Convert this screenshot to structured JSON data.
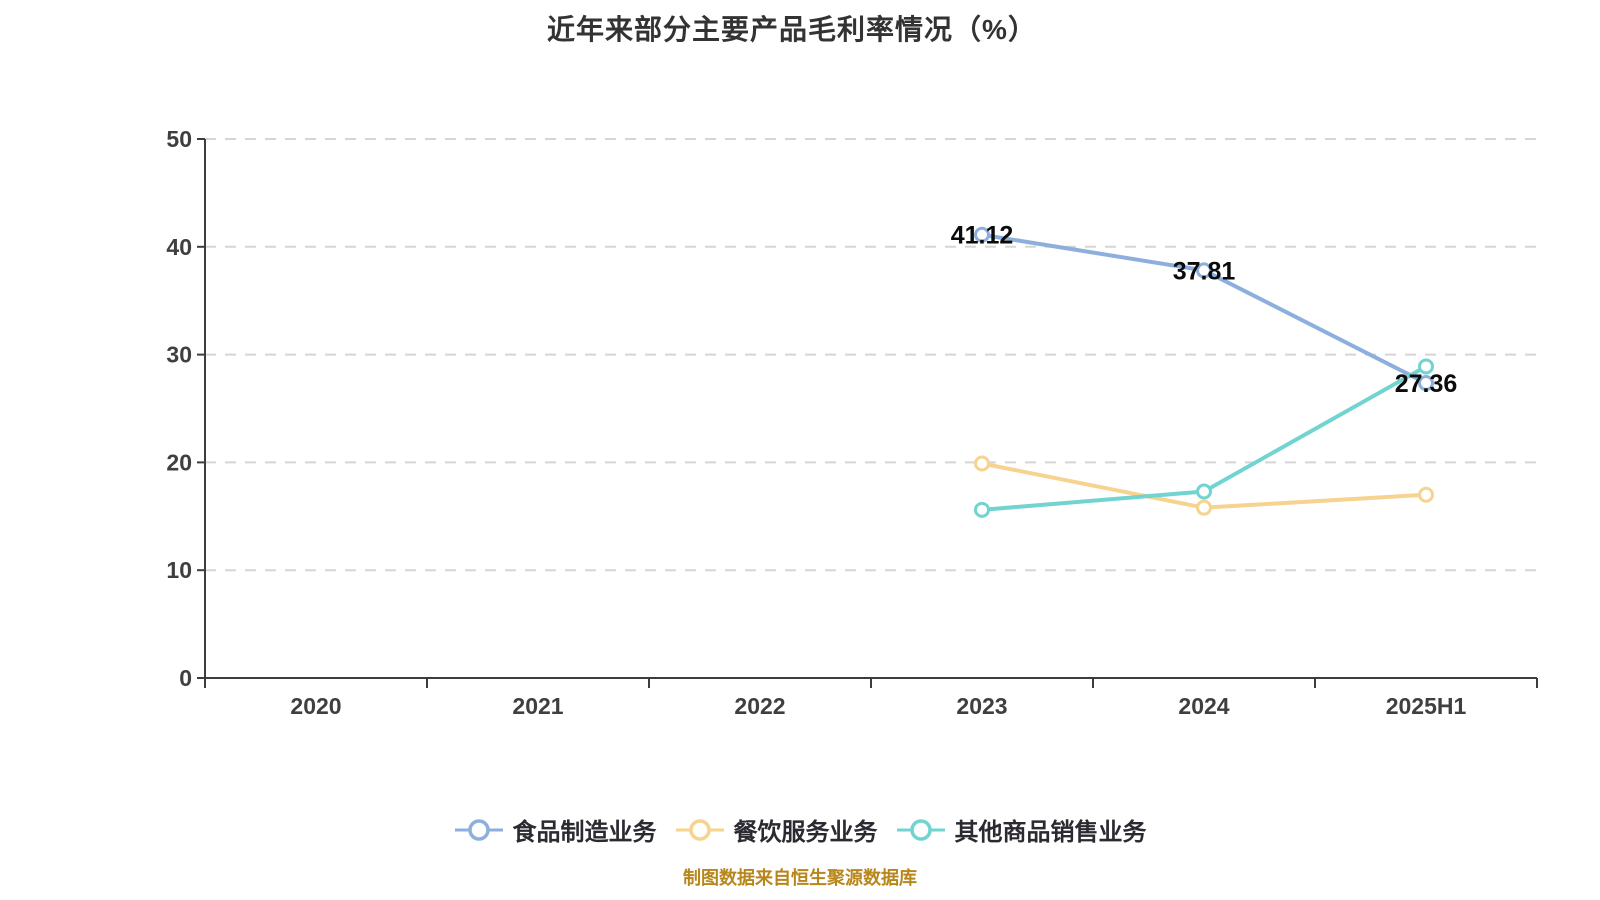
{
  "title": "近年来部分主要产品毛利率情况（%）",
  "caption": "制图数据来自恒生聚源数据库",
  "chart_data": {
    "type": "line",
    "categories": [
      "2020",
      "2021",
      "2022",
      "2023",
      "2024",
      "2025H1"
    ],
    "series": [
      {
        "name": "食品制造业务",
        "color": "#8dafdd",
        "values": [
          null,
          null,
          null,
          41.12,
          37.81,
          27.36
        ],
        "point_labels": [
          null,
          null,
          null,
          "41.12",
          "37.81",
          "27.36"
        ],
        "show_labels": true
      },
      {
        "name": "餐饮服务业务",
        "color": "#f6d38f",
        "values": [
          null,
          null,
          null,
          19.9,
          15.8,
          17.0
        ],
        "point_labels": [
          null,
          null,
          null,
          null,
          null,
          null
        ],
        "show_labels": false
      },
      {
        "name": "其他商品销售业务",
        "color": "#72d4d1",
        "values": [
          null,
          null,
          null,
          15.6,
          17.3,
          28.9
        ],
        "point_labels": [
          null,
          null,
          null,
          null,
          null,
          null
        ],
        "show_labels": false
      }
    ],
    "title": "近年来部分主要产品毛利率情况（%）",
    "xlabel": "",
    "ylabel": "",
    "ylim": [
      0,
      50
    ],
    "y_ticks": [
      0,
      10,
      20,
      30,
      40,
      50
    ],
    "grid": "horizontal-dashed",
    "legend_position": "bottom",
    "marker_style": "hollow-circle",
    "colors": {
      "axis": "#3d3d3d",
      "grid": "#d5d5d5",
      "tick_text": "#3f3f3f",
      "data_label": "#0b0b0b",
      "title_text": "#333333",
      "caption_text": "#b8871b",
      "marker_fill": "#ffffff"
    }
  }
}
